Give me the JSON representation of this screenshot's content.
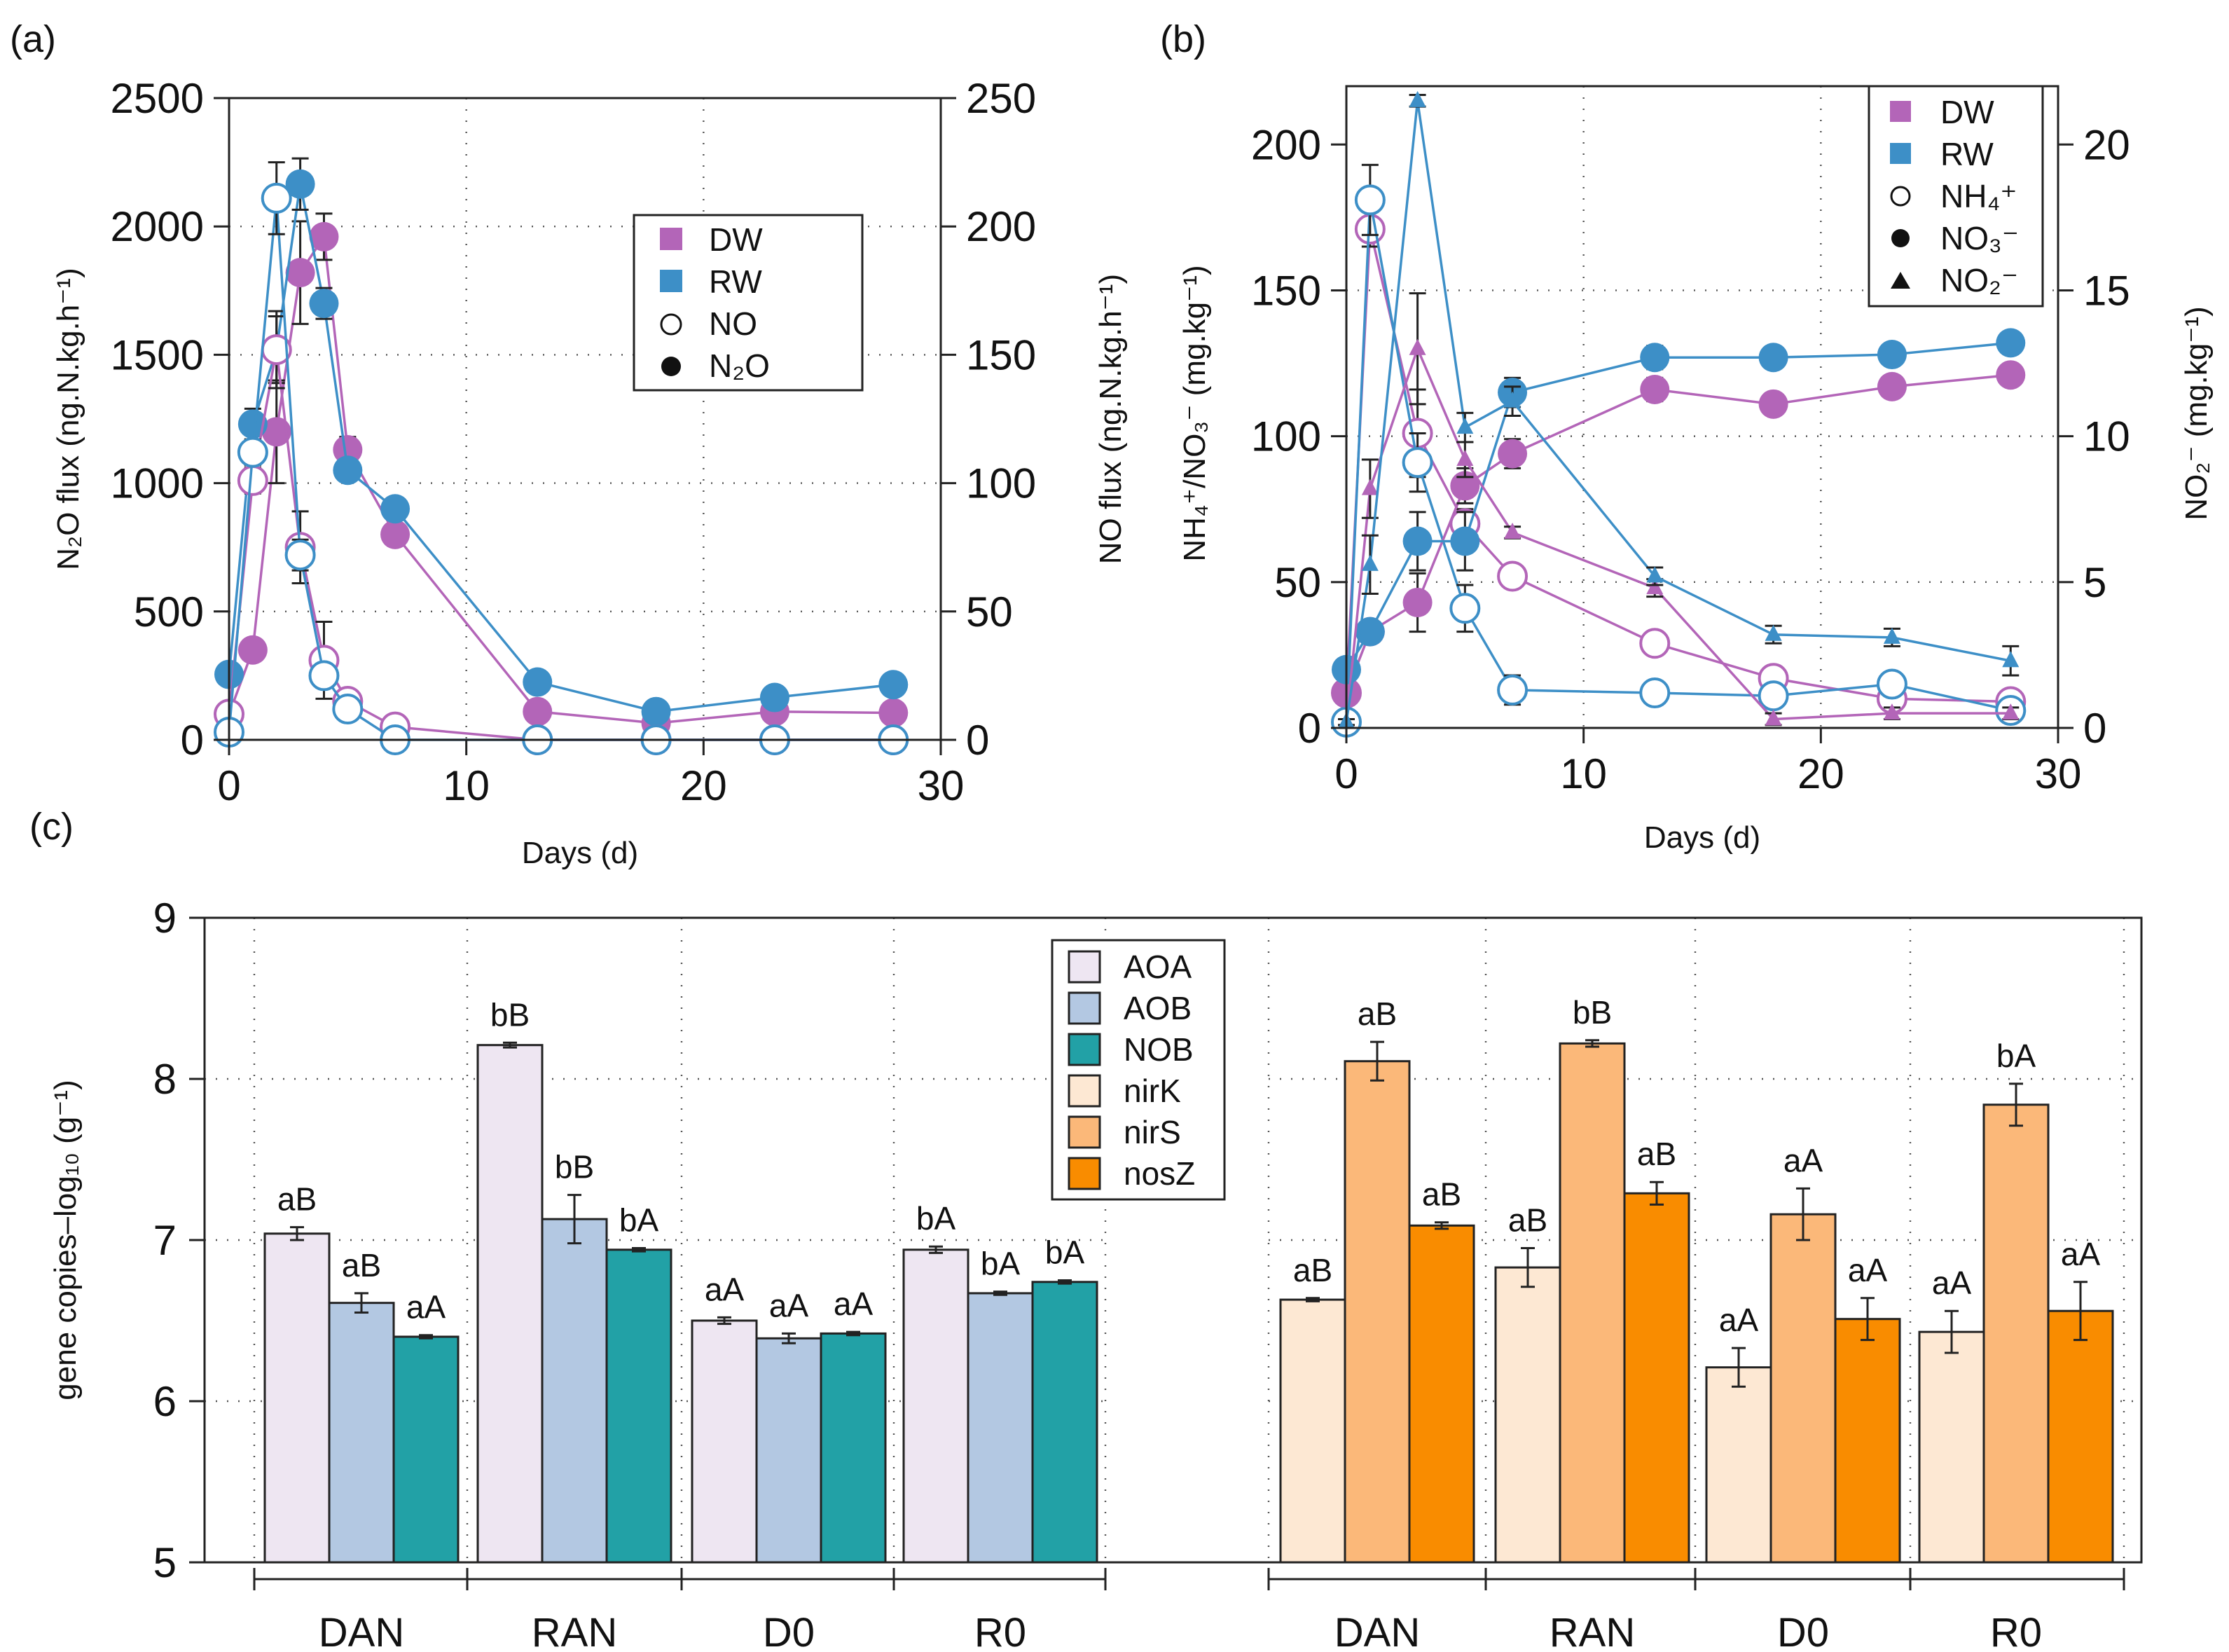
{
  "chart_data": [
    {
      "id": "a",
      "type": "line",
      "panel_label": "(a)",
      "xlabel": "Days (d)",
      "ylabel_left": "N₂O flux  (ng.N.kg.h⁻¹)",
      "ylabel_right": "NO flux (ng.N.kg.h⁻¹)",
      "xlim": [
        0,
        30
      ],
      "ylim_left": [
        0,
        2500
      ],
      "ylim_right": [
        0,
        250
      ],
      "xticks": [
        "0",
        "10",
        "20",
        "30"
      ],
      "yticks_left": [
        "0",
        "500",
        "1000",
        "1500",
        "2000",
        "2500"
      ],
      "yticks_right": [
        "0",
        "50",
        "100",
        "150",
        "200",
        "250"
      ],
      "grid": "dotted",
      "legend": [
        {
          "label": "DW",
          "marker": "square",
          "color": "#b365b8"
        },
        {
          "label": "RW",
          "marker": "square",
          "color": "#3d8fc7"
        },
        {
          "label": "NO",
          "marker": "open-circle",
          "color": "#111111"
        },
        {
          "label": "N₂O",
          "marker": "filled-circle",
          "color": "#111111"
        }
      ],
      "series": [
        {
          "name": "DW N₂O",
          "axis": "left",
          "marker": "filled",
          "color": "#b365b8",
          "x": [
            0,
            1,
            2,
            3,
            4,
            5,
            7,
            13,
            18,
            23,
            28
          ],
          "y": [
            100,
            350,
            1200,
            1820,
            1960,
            1130,
            800,
            110,
            65,
            110,
            105
          ],
          "err": [
            20,
            30,
            200,
            200,
            90,
            50,
            20,
            20,
            15,
            15,
            15
          ]
        },
        {
          "name": "RW N₂O",
          "axis": "left",
          "marker": "filled",
          "color": "#3d8fc7",
          "x": [
            0,
            1,
            2,
            3,
            4,
            5,
            7,
            13,
            18,
            23,
            28
          ],
          "y": [
            255,
            1230,
            1520,
            2165,
            1700,
            1050,
            900,
            225,
            110,
            165,
            215
          ],
          "err": [
            30,
            60,
            130,
            100,
            60,
            30,
            20,
            35,
            40,
            20,
            40
          ]
        },
        {
          "name": "DW NO",
          "axis": "right",
          "marker": "open",
          "color": "#b365b8",
          "x": [
            0,
            1,
            2,
            3,
            4,
            5,
            7,
            13,
            18,
            23,
            28
          ],
          "y": [
            10,
            101,
            152,
            75,
            31,
            15,
            5,
            0,
            0,
            0,
            0
          ],
          "err": [
            1,
            5,
            15,
            14,
            15,
            3,
            1,
            0,
            0,
            0,
            0
          ]
        },
        {
          "name": "RW NO",
          "axis": "right",
          "marker": "open",
          "color": "#3d8fc7",
          "x": [
            0,
            1,
            2,
            3,
            4,
            5,
            7,
            13,
            18,
            23,
            28
          ],
          "y": [
            3,
            112,
            211,
            72,
            25,
            12,
            0,
            0,
            0,
            0,
            0
          ],
          "err": [
            1,
            5,
            14,
            6,
            3,
            2,
            0,
            0,
            0,
            0,
            0
          ]
        }
      ]
    },
    {
      "id": "b",
      "type": "line",
      "panel_label": "(b)",
      "xlabel": "Days (d)",
      "ylabel_left": "NH₄⁺/NO₃⁻ (mg.kg⁻¹)",
      "ylabel_right": "NO₂⁻ (mg.kg⁻¹)",
      "xlim": [
        0,
        30
      ],
      "ylim_left": [
        0,
        220
      ],
      "ylim_right": [
        0,
        22
      ],
      "xticks": [
        "0",
        "10",
        "20",
        "30"
      ],
      "yticks_left": [
        "0",
        "50",
        "100",
        "150",
        "200"
      ],
      "yticks_right": [
        "0",
        "5",
        "10",
        "15",
        "20"
      ],
      "grid": "dotted",
      "legend": [
        {
          "label": "DW",
          "marker": "square",
          "color": "#b365b8"
        },
        {
          "label": "RW",
          "marker": "square",
          "color": "#3d8fc7"
        },
        {
          "label": "NH₄⁺",
          "marker": "open-circle",
          "color": "#111111"
        },
        {
          "label": "NO₃⁻",
          "marker": "filled-circle",
          "color": "#111111"
        },
        {
          "label": "NO₂⁻",
          "marker": "triangle",
          "color": "#111111"
        }
      ],
      "series": [
        {
          "name": "DW NH4+",
          "axis": "left",
          "marker": "open",
          "color": "#b365b8",
          "x": [
            0,
            1,
            3,
            5,
            7,
            13,
            18,
            23,
            28
          ],
          "y": [
            12,
            171,
            101,
            70,
            52,
            29,
            17,
            10,
            9
          ],
          "err": [
            2,
            6,
            15,
            5,
            4,
            4,
            3,
            3,
            3
          ]
        },
        {
          "name": "RW NH4+",
          "axis": "left",
          "marker": "open",
          "color": "#3d8fc7",
          "x": [
            0,
            1,
            3,
            5,
            7,
            13,
            18,
            23,
            28
          ],
          "y": [
            2,
            181,
            91,
            41,
            13,
            12,
            11,
            15,
            6
          ],
          "err": [
            1,
            12,
            10,
            8,
            5,
            4,
            3,
            4,
            3
          ]
        },
        {
          "name": "DW NO3-",
          "axis": "left",
          "marker": "filled",
          "color": "#b365b8",
          "x": [
            0,
            1,
            3,
            5,
            7,
            13,
            18,
            23,
            28
          ],
          "y": [
            12,
            33,
            43,
            83,
            94,
            116,
            111,
            117,
            121
          ],
          "err": [
            2,
            3,
            10,
            6,
            5,
            4,
            3,
            3,
            3
          ]
        },
        {
          "name": "RW NO3-",
          "axis": "left",
          "marker": "filled",
          "color": "#3d8fc7",
          "x": [
            0,
            1,
            3,
            5,
            7,
            13,
            18,
            23,
            28
          ],
          "y": [
            20,
            33,
            64,
            64,
            115,
            127,
            127,
            128,
            132
          ],
          "err": [
            2,
            3,
            10,
            10,
            5,
            4,
            3,
            3,
            3
          ]
        },
        {
          "name": "DW NO2-",
          "axis": "right",
          "marker": "triangle",
          "color": "#b365b8",
          "x": [
            0,
            1,
            3,
            5,
            7,
            13,
            18,
            23,
            28
          ],
          "y": [
            0.2,
            8.2,
            13.0,
            9.2,
            6.7,
            4.8,
            0.3,
            0.5,
            0.5
          ],
          "err": [
            0.1,
            1.0,
            1.9,
            0.6,
            0.2,
            0.3,
            0.2,
            0.2,
            0.2
          ]
        },
        {
          "name": "RW NO2-",
          "axis": "right",
          "marker": "triangle",
          "color": "#3d8fc7",
          "x": [
            0,
            1,
            3,
            5,
            7,
            13,
            18,
            23,
            28
          ],
          "y": [
            0.2,
            5.6,
            21.5,
            10.3,
            11.2,
            5.2,
            3.2,
            3.1,
            2.3
          ],
          "err": [
            0.1,
            1.0,
            0.2,
            0.5,
            0.5,
            0.3,
            0.3,
            0.3,
            0.5
          ]
        }
      ]
    },
    {
      "id": "c",
      "type": "bar",
      "panel_label": "(c)",
      "ylabel": "gene copies–log₁₀ (g⁻¹)",
      "ylim": [
        5,
        9
      ],
      "yticks": [
        "5",
        "6",
        "7",
        "8",
        "9"
      ],
      "grid": "dotted",
      "groups": [
        {
          "categories": [
            "DAN",
            "RAN",
            "D0",
            "R0"
          ],
          "series": [
            {
              "name": "AOA",
              "color": "#eee6f2",
              "values": [
                7.04,
                8.21,
                6.5,
                6.94
              ],
              "err": [
                0.04,
                0.015,
                0.02,
                0.02
              ],
              "sig": [
                "aB",
                "bB",
                "aA",
                "bA"
              ]
            },
            {
              "name": "AOB",
              "color": "#b3c8e2",
              "values": [
                6.61,
                7.13,
                6.39,
                6.67
              ],
              "err": [
                0.06,
                0.15,
                0.03,
                0.01
              ],
              "sig": [
                "aB",
                "bB",
                "aA",
                "bA"
              ]
            },
            {
              "name": "NOB",
              "color": "#22a1a6",
              "values": [
                6.4,
                6.94,
                6.42,
                6.74
              ],
              "err": [
                0.01,
                0.01,
                0.01,
                0.01
              ],
              "sig": [
                "aA",
                "bA",
                "aA",
                "bA"
              ]
            }
          ]
        },
        {
          "categories": [
            "DAN",
            "RAN",
            "D0",
            "R0"
          ],
          "series": [
            {
              "name": "nirK",
              "color": "#fde8d3",
              "values": [
                6.63,
                6.83,
                6.21,
                6.43
              ],
              "err": [
                0.01,
                0.12,
                0.12,
                0.13
              ],
              "sig": [
                "aB",
                "aB",
                "aA",
                "aA"
              ]
            },
            {
              "name": "nirS",
              "color": "#fbb879",
              "values": [
                8.11,
                8.22,
                7.16,
                7.84
              ],
              "err": [
                0.12,
                0.02,
                0.16,
                0.13
              ],
              "sig": [
                "aB",
                "bB",
                "aA",
                "bA"
              ]
            },
            {
              "name": "nosZ",
              "color": "#f98c00",
              "values": [
                7.09,
                7.29,
                6.51,
                6.56
              ],
              "err": [
                0.02,
                0.07,
                0.13,
                0.18
              ],
              "sig": [
                "aB",
                "aB",
                "aA",
                "aA"
              ]
            }
          ]
        }
      ]
    }
  ]
}
